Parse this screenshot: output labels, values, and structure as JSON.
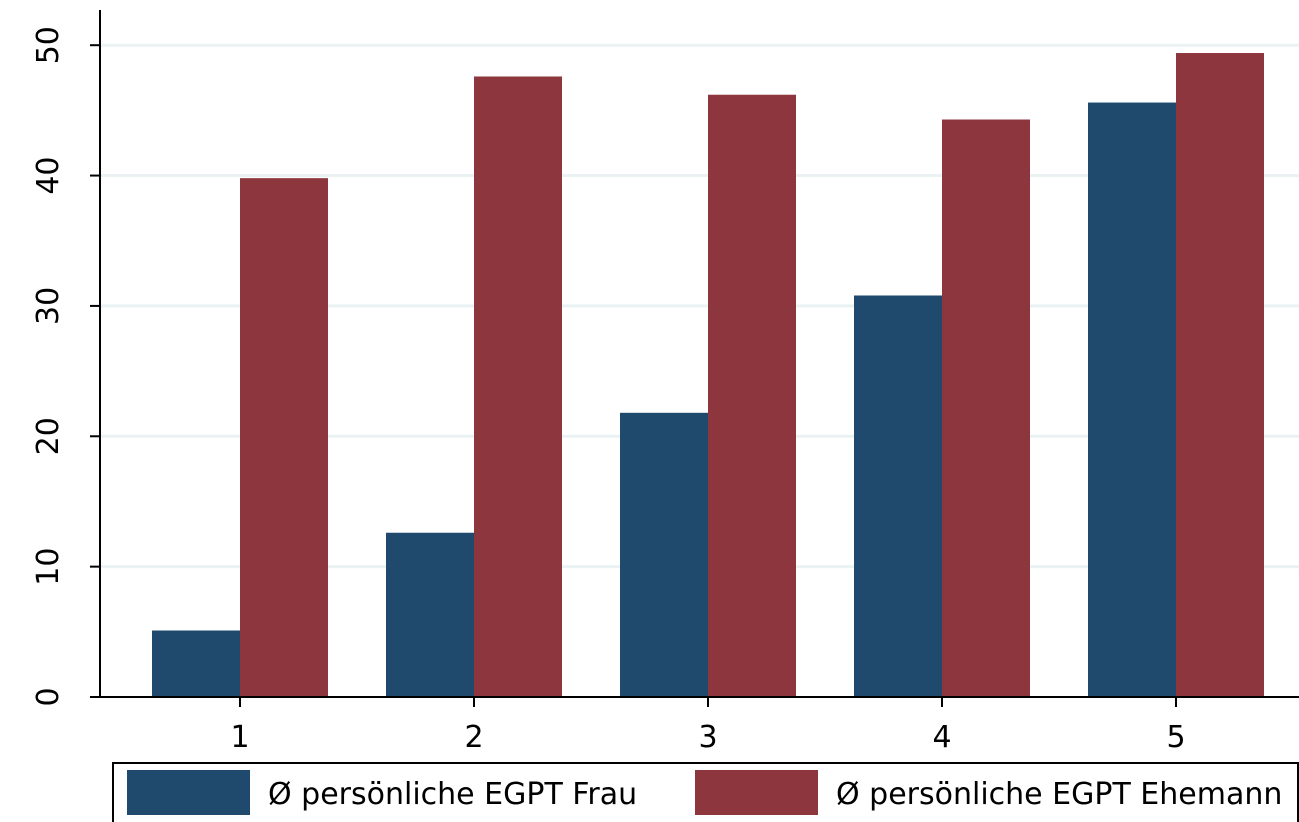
{
  "chart_data": {
    "type": "bar",
    "categories": [
      "1",
      "2",
      "3",
      "4",
      "5"
    ],
    "series": [
      {
        "name": "Ø persönliche EGPT Frau",
        "color": "#1f4a6e",
        "values": [
          5.1,
          12.6,
          21.8,
          30.8,
          45.6
        ]
      },
      {
        "name": "Ø persönliche EGPT Ehemann",
        "color": "#8e363d",
        "values": [
          39.8,
          47.6,
          46.2,
          44.3,
          49.4
        ]
      }
    ],
    "ylim": [
      0,
      52.7
    ],
    "yticks": [
      0,
      10,
      20,
      30,
      40,
      50
    ],
    "grid": true,
    "legend": "bottom"
  }
}
